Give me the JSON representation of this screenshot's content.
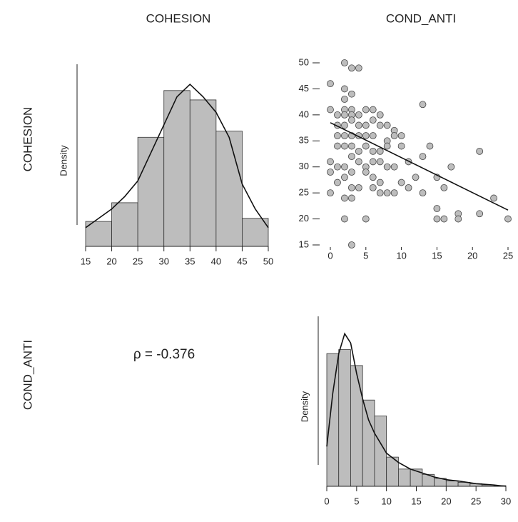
{
  "column_headers": [
    "COHESION",
    "COND_ANTI"
  ],
  "row_headers": [
    "COHESION",
    "COND_ANTI"
  ],
  "correlation": "ρ = -0.376",
  "chart_data": [
    {
      "type": "histogram",
      "ylabel": "Density",
      "bins": [
        15,
        20,
        25,
        30,
        35,
        40,
        45,
        50
      ],
      "values": [
        0.008,
        0.014,
        0.035,
        0.05,
        0.047,
        0.037,
        0.009
      ],
      "xlim": [
        15,
        50
      ],
      "xticks": [
        15,
        20,
        25,
        30,
        35,
        40,
        45,
        50
      ],
      "ylim": [
        0,
        0.055
      ],
      "color": "#bdbdbd",
      "density": {
        "x": [
          15,
          17.5,
          20,
          22.5,
          25,
          27.5,
          30,
          32.5,
          35,
          37.5,
          40,
          42.5,
          45,
          47.5,
          50
        ],
        "y": [
          0.006,
          0.009,
          0.012,
          0.016,
          0.021,
          0.03,
          0.039,
          0.048,
          0.052,
          0.048,
          0.043,
          0.035,
          0.02,
          0.012,
          0.006
        ]
      }
    },
    {
      "type": "scatter",
      "color": "#bdbdbd",
      "x": [
        2,
        3,
        4,
        0,
        2,
        2,
        3,
        2,
        3,
        0,
        1,
        2,
        3,
        4,
        5,
        6,
        7,
        1,
        2,
        3,
        4,
        5,
        6,
        7,
        8,
        9,
        10,
        13,
        1,
        2,
        3,
        4,
        5,
        6,
        8,
        9,
        1,
        2,
        3,
        4,
        5,
        6,
        7,
        8,
        10,
        14,
        13,
        0,
        1,
        2,
        3,
        4,
        5,
        6,
        7,
        8,
        9,
        11,
        17,
        21,
        0,
        2,
        3,
        5,
        6,
        7,
        10,
        12,
        15,
        1,
        3,
        4,
        6,
        8,
        9,
        11,
        13,
        16,
        0,
        2,
        3,
        7,
        15,
        15,
        16,
        18,
        18,
        21,
        23,
        25,
        2,
        5,
        3
      ],
      "y": [
        50,
        49,
        49,
        46,
        45,
        43,
        44,
        41,
        41,
        41,
        40,
        40,
        40,
        40,
        41,
        41,
        40,
        38,
        38,
        39,
        38,
        38,
        39,
        38,
        38,
        37,
        36,
        42,
        36,
        36,
        36,
        36,
        36,
        36,
        35,
        36,
        34,
        34,
        34,
        33,
        34,
        33,
        33,
        34,
        34,
        34,
        32,
        31,
        30,
        30,
        32,
        31,
        30,
        31,
        31,
        30,
        30,
        31,
        30,
        33,
        29,
        28,
        29,
        29,
        28,
        27,
        27,
        28,
        28,
        27,
        26,
        26,
        26,
        25,
        25,
        26,
        25,
        26,
        25,
        24,
        24,
        25,
        22,
        20,
        20,
        21,
        20,
        21,
        24,
        20,
        20,
        20,
        15
      ],
      "xlim": [
        0,
        25
      ],
      "xticks": [
        0,
        5,
        10,
        15,
        20,
        25
      ],
      "ylim": [
        15,
        50
      ],
      "yticks": [
        15,
        20,
        25,
        30,
        35,
        40,
        45,
        50
      ],
      "fit": {
        "x": [
          0,
          25
        ],
        "y": [
          38.5,
          21.7
        ]
      }
    },
    {
      "type": "histogram",
      "ylabel": "Density",
      "bins": [
        0,
        2,
        4,
        6,
        8,
        10,
        12,
        14,
        16,
        18,
        20,
        22,
        24,
        26,
        28,
        30
      ],
      "values": [
        0.1,
        0.103,
        0.091,
        0.065,
        0.053,
        0.022,
        0.013,
        0.013,
        0.009,
        0.006,
        0.004,
        0.003,
        0.002,
        0.001,
        0.0005
      ],
      "xlim": [
        0,
        30
      ],
      "xticks": [
        0,
        5,
        10,
        15,
        20,
        25,
        30
      ],
      "ylim": [
        0,
        0.12
      ],
      "color": "#bdbdbd",
      "density": {
        "x": [
          0,
          1,
          2,
          3,
          4,
          5,
          6,
          7,
          8,
          10,
          12,
          14,
          16,
          18,
          20,
          22,
          25,
          28,
          30
        ],
        "y": [
          0.03,
          0.07,
          0.1,
          0.115,
          0.108,
          0.085,
          0.066,
          0.05,
          0.04,
          0.025,
          0.018,
          0.013,
          0.01,
          0.007,
          0.005,
          0.004,
          0.002,
          0.001,
          0
        ]
      }
    }
  ]
}
